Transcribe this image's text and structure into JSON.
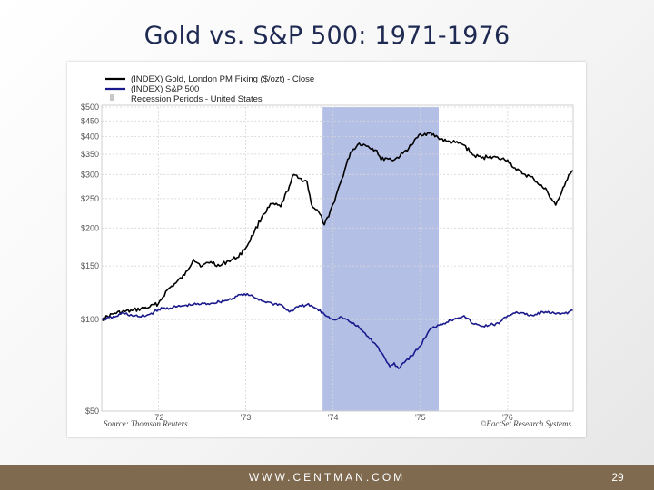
{
  "slide": {
    "title": "Gold vs. S&P 500:  1971-1976",
    "footer_url": "WWW.CENTMAN.COM",
    "page_number": "29"
  },
  "colors": {
    "gold_line": "#000000",
    "sp500_line": "#1a1a8c",
    "recession_band": "#b4bfe6",
    "footer_bar": "#7f6a50",
    "title": "#1f2a52"
  },
  "chart_data": {
    "type": "line",
    "title": "",
    "xlabel": "",
    "ylabel": "",
    "y_scale": "log",
    "ylim": [
      50,
      500
    ],
    "xlim": [
      1971.35,
      1976.75
    ],
    "y_ticks": [
      {
        "value": 500,
        "label": "$500"
      },
      {
        "value": 450,
        "label": "$450"
      },
      {
        "value": 400,
        "label": "$400"
      },
      {
        "value": 350,
        "label": "$350"
      },
      {
        "value": 300,
        "label": "$300"
      },
      {
        "value": 250,
        "label": "$250"
      },
      {
        "value": 200,
        "label": "$200"
      },
      {
        "value": 150,
        "label": "$150"
      },
      {
        "value": 100,
        "label": "$100"
      },
      {
        "value": 50,
        "label": "$50"
      }
    ],
    "x_ticks": [
      {
        "value": 1972,
        "label": "'72"
      },
      {
        "value": 1973,
        "label": "'73"
      },
      {
        "value": 1974,
        "label": "'74"
      },
      {
        "value": 1975,
        "label": "'75"
      },
      {
        "value": 1976,
        "label": "'76"
      }
    ],
    "grid": true,
    "legend_position": "top-left",
    "legend": [
      {
        "label": "(INDEX) Gold, London PM Fixing ($/ozt) - Close",
        "marker": "line",
        "color": "#000000"
      },
      {
        "label": "(INDEX) S&P 500",
        "marker": "line",
        "color": "#1a1a8c"
      },
      {
        "label": "Recession Periods - United States",
        "marker": "square",
        "color": "#c8c8c8"
      }
    ],
    "recession_periods": [
      [
        1973.88,
        1975.21
      ]
    ],
    "series": [
      {
        "name": "(INDEX) Gold, London PM Fixing ($/ozt) - Close",
        "color": "#000000",
        "points": [
          [
            1971.35,
            100
          ],
          [
            1971.5,
            105
          ],
          [
            1971.7,
            107
          ],
          [
            1971.9,
            110
          ],
          [
            1972.0,
            113
          ],
          [
            1972.1,
            125
          ],
          [
            1972.2,
            132
          ],
          [
            1972.3,
            140
          ],
          [
            1972.4,
            158
          ],
          [
            1972.5,
            150
          ],
          [
            1972.6,
            155
          ],
          [
            1972.7,
            150
          ],
          [
            1972.8,
            156
          ],
          [
            1972.9,
            160
          ],
          [
            1973.0,
            172
          ],
          [
            1973.1,
            195
          ],
          [
            1973.2,
            222
          ],
          [
            1973.3,
            240
          ],
          [
            1973.4,
            235
          ],
          [
            1973.5,
            275
          ],
          [
            1973.55,
            300
          ],
          [
            1973.6,
            292
          ],
          [
            1973.7,
            285
          ],
          [
            1973.75,
            240
          ],
          [
            1973.85,
            222
          ],
          [
            1973.9,
            205
          ],
          [
            1973.95,
            218
          ],
          [
            1974.0,
            240
          ],
          [
            1974.1,
            290
          ],
          [
            1974.2,
            355
          ],
          [
            1974.3,
            380
          ],
          [
            1974.4,
            372
          ],
          [
            1974.5,
            360
          ],
          [
            1974.55,
            335
          ],
          [
            1974.6,
            340
          ],
          [
            1974.7,
            335
          ],
          [
            1974.8,
            352
          ],
          [
            1974.9,
            375
          ],
          [
            1975.0,
            408
          ],
          [
            1975.1,
            410
          ],
          [
            1975.2,
            398
          ],
          [
            1975.3,
            385
          ],
          [
            1975.4,
            382
          ],
          [
            1975.5,
            375
          ],
          [
            1975.6,
            348
          ],
          [
            1975.7,
            340
          ],
          [
            1975.8,
            345
          ],
          [
            1975.9,
            338
          ],
          [
            1976.0,
            335
          ],
          [
            1976.1,
            310
          ],
          [
            1976.2,
            300
          ],
          [
            1976.3,
            290
          ],
          [
            1976.4,
            272
          ],
          [
            1976.45,
            265
          ],
          [
            1976.5,
            250
          ],
          [
            1976.55,
            238
          ],
          [
            1976.6,
            255
          ],
          [
            1976.65,
            275
          ],
          [
            1976.7,
            300
          ],
          [
            1976.75,
            310
          ]
        ]
      },
      {
        "name": "(INDEX) S&P 500",
        "color": "#1a1a8c",
        "points": [
          [
            1971.35,
            100
          ],
          [
            1971.5,
            102
          ],
          [
            1971.6,
            105
          ],
          [
            1971.7,
            103
          ],
          [
            1971.8,
            102
          ],
          [
            1971.9,
            104
          ],
          [
            1972.0,
            108
          ],
          [
            1972.2,
            110
          ],
          [
            1972.4,
            112
          ],
          [
            1972.6,
            113
          ],
          [
            1972.8,
            116
          ],
          [
            1972.95,
            121
          ],
          [
            1973.05,
            120
          ],
          [
            1973.2,
            115
          ],
          [
            1973.3,
            113
          ],
          [
            1973.4,
            112
          ],
          [
            1973.5,
            106
          ],
          [
            1973.6,
            110
          ],
          [
            1973.7,
            112
          ],
          [
            1973.8,
            109
          ],
          [
            1973.9,
            104
          ],
          [
            1974.0,
            100
          ],
          [
            1974.1,
            102
          ],
          [
            1974.2,
            98
          ],
          [
            1974.3,
            94
          ],
          [
            1974.4,
            88
          ],
          [
            1974.5,
            82
          ],
          [
            1974.6,
            74
          ],
          [
            1974.65,
            70
          ],
          [
            1974.7,
            72
          ],
          [
            1974.75,
            69
          ],
          [
            1974.8,
            72
          ],
          [
            1974.9,
            76
          ],
          [
            1975.0,
            82
          ],
          [
            1975.1,
            92
          ],
          [
            1975.2,
            96
          ],
          [
            1975.3,
            98
          ],
          [
            1975.4,
            101
          ],
          [
            1975.5,
            103
          ],
          [
            1975.6,
            97
          ],
          [
            1975.7,
            95
          ],
          [
            1975.8,
            96
          ],
          [
            1975.9,
            97
          ],
          [
            1976.0,
            103
          ],
          [
            1976.1,
            106
          ],
          [
            1976.2,
            104
          ],
          [
            1976.3,
            103
          ],
          [
            1976.4,
            106
          ],
          [
            1976.5,
            105
          ],
          [
            1976.6,
            104
          ],
          [
            1976.7,
            106
          ],
          [
            1976.75,
            107
          ]
        ]
      }
    ],
    "source_left": "Source: Thomson Reuters",
    "source_right": "©FactSet Research Systems"
  }
}
